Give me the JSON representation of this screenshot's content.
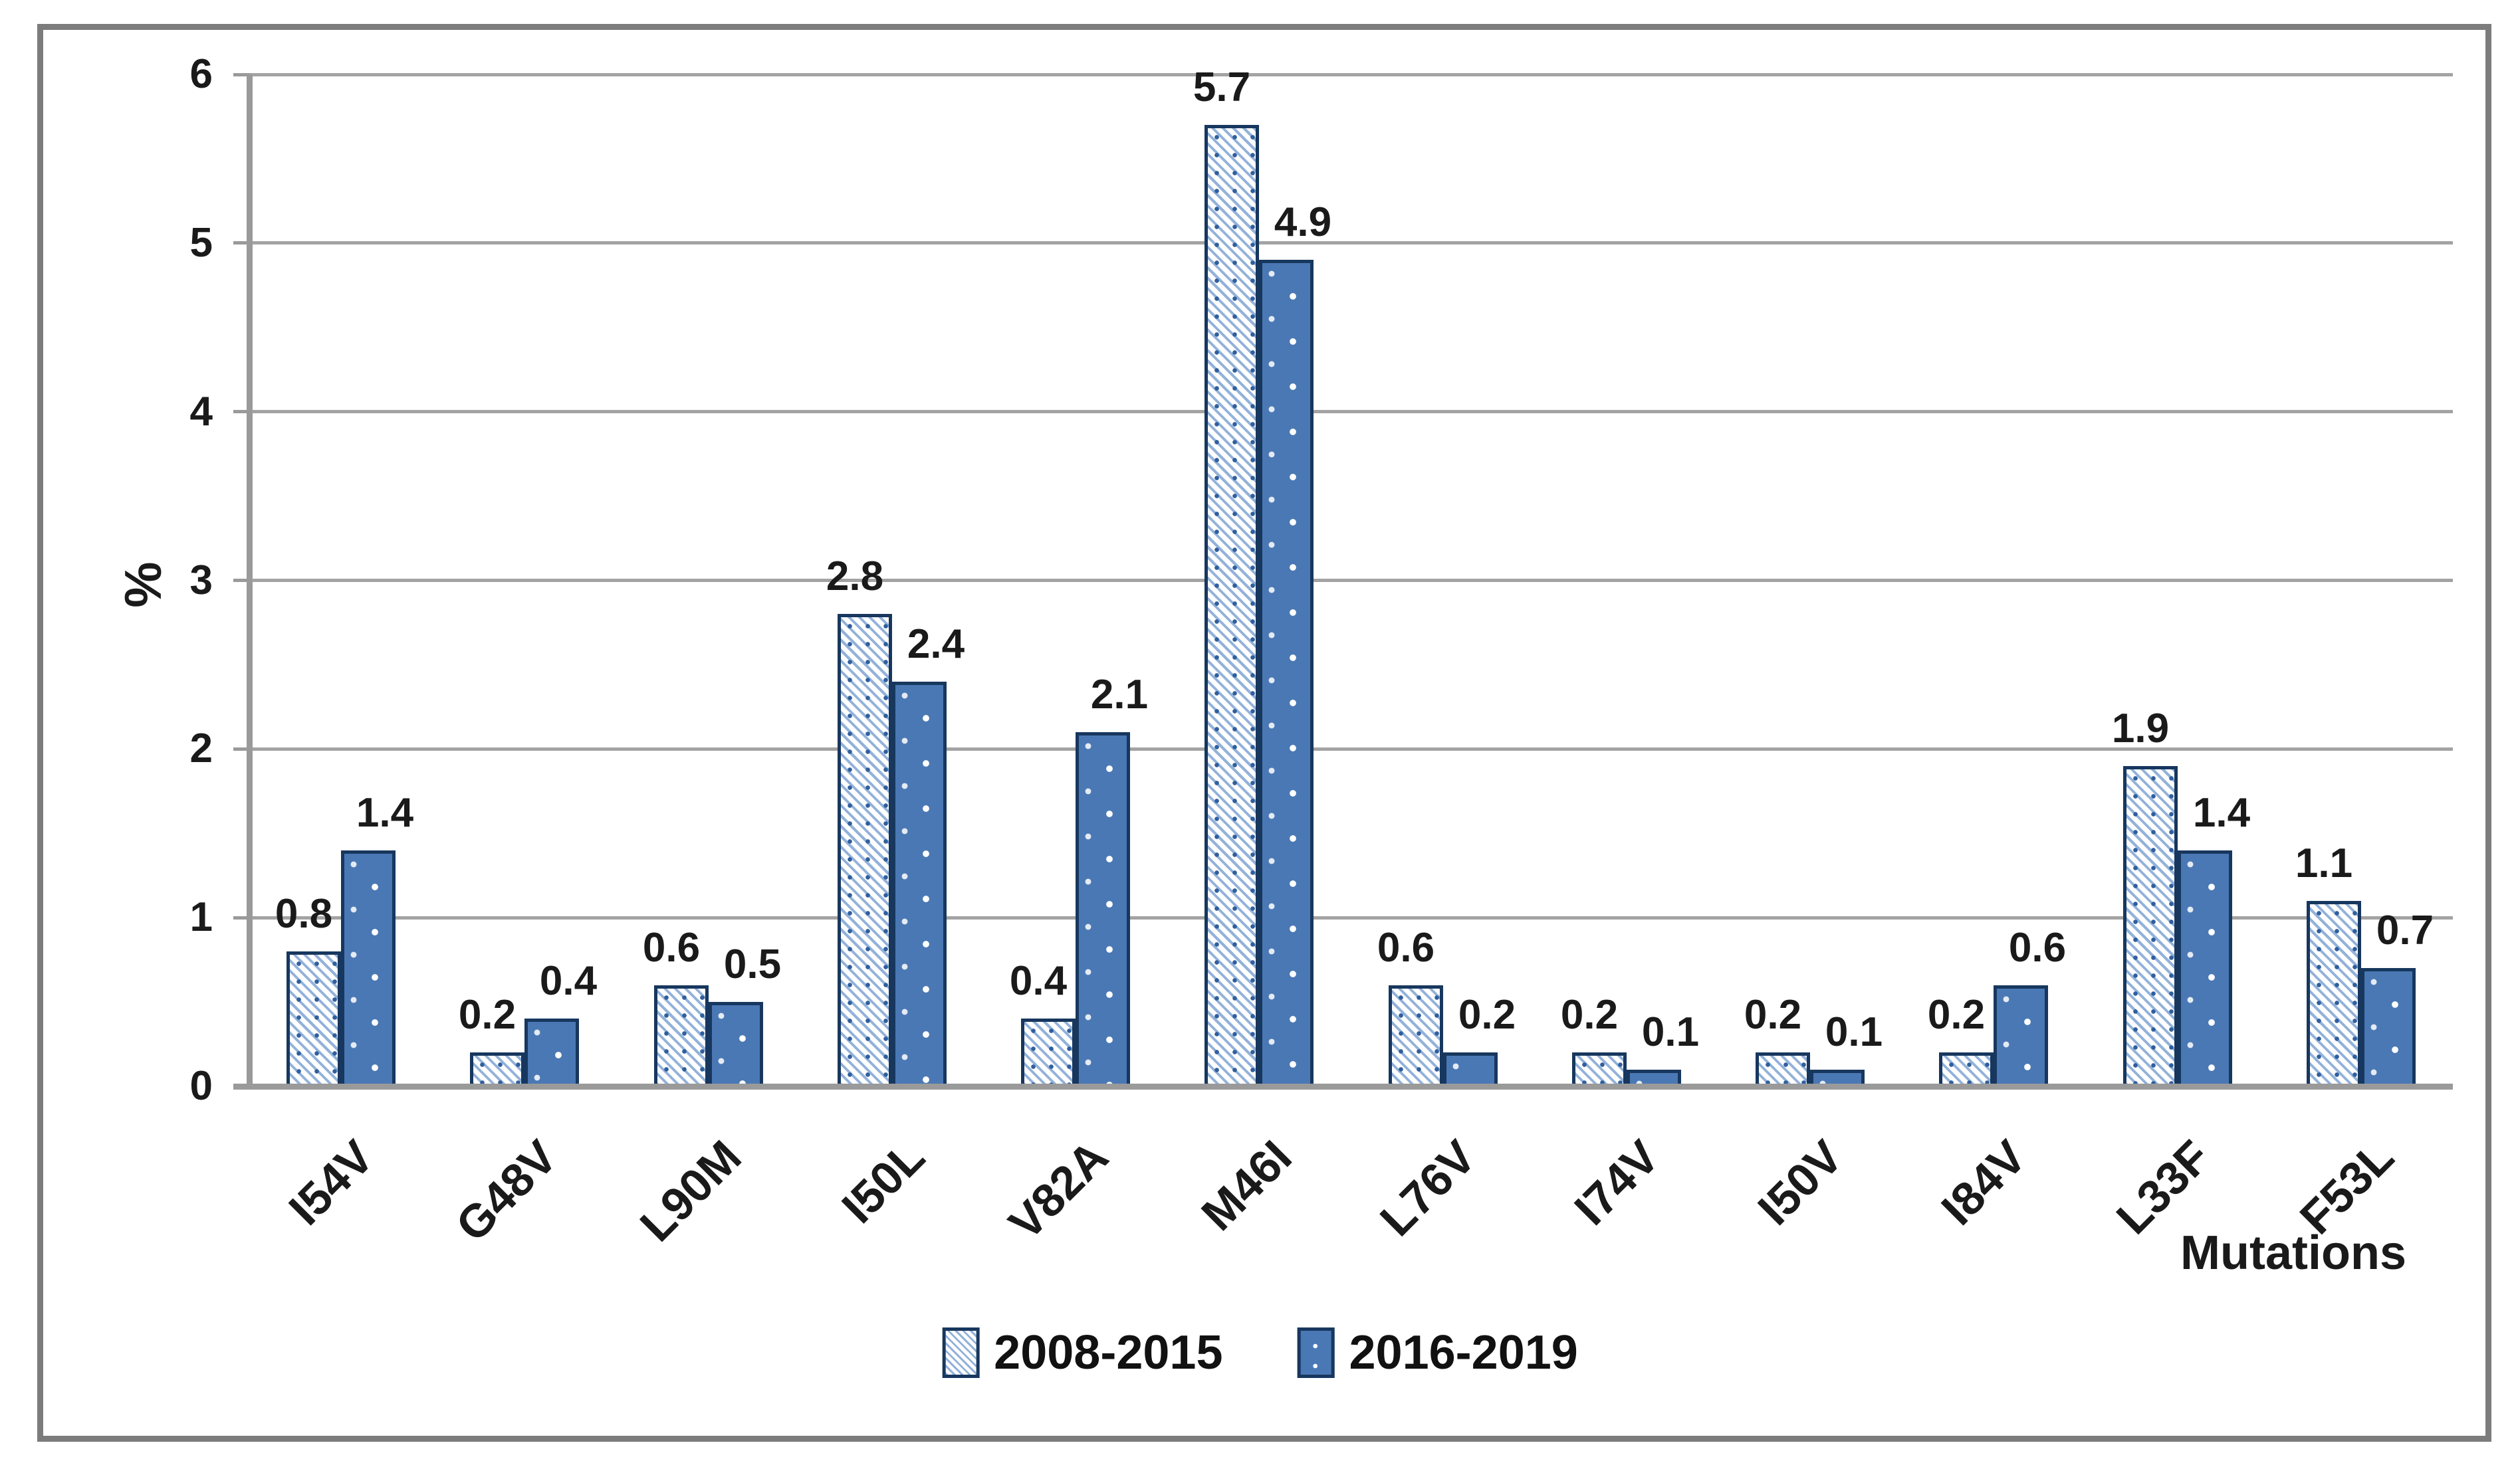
{
  "chart_data": {
    "type": "bar",
    "title": "",
    "categories": [
      "I54V",
      "G48V",
      "L90M",
      "I50L",
      "V82A",
      "M46I",
      "L76V",
      "I74V",
      "I50V",
      "I84V",
      "L33F",
      "F53L"
    ],
    "series": [
      {
        "name": "2008-2015",
        "values": [
          0.8,
          0.2,
          0.6,
          2.8,
          0.4,
          5.7,
          0.6,
          0.2,
          0.2,
          0.2,
          1.9,
          1.1
        ],
        "pattern": "diagonal-hatch",
        "fill": "#ffffff",
        "stripe_color": "#93b2da",
        "dot_color": "#2f5f9e",
        "border_color": "#17375e"
      },
      {
        "name": "2016-2019",
        "values": [
          1.4,
          0.4,
          0.5,
          2.4,
          2.1,
          4.9,
          0.2,
          0.1,
          0.1,
          0.6,
          1.4,
          0.7
        ],
        "pattern": "dots",
        "fill": "#4a78b4",
        "dot_color": "#ffffff",
        "border_color": "#17375e"
      }
    ],
    "ylabel": "%",
    "xlabel": "Mutations",
    "ylim": [
      0,
      6
    ],
    "yticks": [
      0,
      1,
      2,
      3,
      4,
      5,
      6
    ],
    "grid": true,
    "data_labels": true,
    "legend_position": "bottom-center"
  },
  "colors": {
    "gridline": "#a3a3a3",
    "axis": "#9a9a9a",
    "tick": "#9a9a9a",
    "text": "#1a1a1a",
    "frame_border": "#7c7c7c",
    "background": "#ffffff"
  }
}
